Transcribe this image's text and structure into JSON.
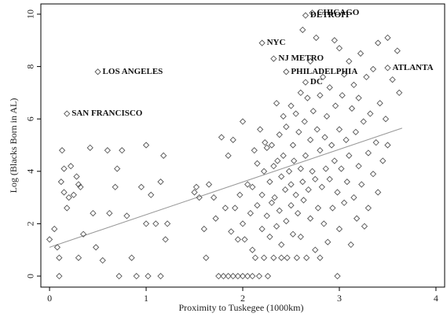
{
  "chart_data": {
    "type": "scatter",
    "x_label": "Proximity to Tuskegee (1000km)",
    "y_label": "Log (Blacks Born in AL)",
    "xlim": [
      -0.09,
      4.09
    ],
    "ylim": [
      -0.42,
      10.39
    ],
    "xticks": [
      0,
      1,
      2,
      3,
      4
    ],
    "yticks": [
      0,
      2,
      4,
      6,
      8,
      10
    ],
    "marker_color": "#555555",
    "fit_color": "#999999",
    "x": [
      0,
      0.05,
      0.08,
      0.1,
      0.1,
      0.12,
      0.13,
      0.15,
      0.15,
      0.18,
      0.2,
      0.22,
      0.25,
      0.28,
      0.3,
      0.32,
      0.35,
      0.3,
      0.42,
      0.45,
      0.48,
      0.55,
      0.6,
      0.62,
      0.68,
      0.7,
      0.72,
      0.75,
      0.8,
      0.85,
      0.9,
      0.95,
      1.0,
      1.0,
      1.02,
      1.05,
      1.1,
      1.15,
      1.18,
      1.2,
      1.22,
      1.15,
      1.5,
      1.52,
      1.55,
      1.6,
      1.62,
      1.65,
      1.7,
      1.72,
      1.75,
      1.78,
      1.8,
      1.82,
      1.85,
      1.85,
      1.88,
      1.9,
      1.9,
      1.92,
      1.95,
      1.95,
      1.97,
      2.0,
      2.0,
      2.02,
      2.0,
      2.05,
      2.05,
      2.08,
      2.1,
      2.1,
      2.1,
      2.12,
      2.13,
      2.15,
      2.15,
      2.17,
      2.18,
      2.2,
      2.2,
      2.22,
      2.22,
      2.23,
      2.25,
      2.25,
      2.26,
      2.28,
      2.28,
      2.3,
      2.3,
      2.32,
      2.32,
      2.33,
      2.35,
      2.35,
      2.36,
      2.38,
      2.38,
      2.4,
      2.4,
      2.4,
      2.42,
      2.42,
      2.44,
      2.45,
      2.45,
      2.46,
      2.48,
      2.5,
      2.5,
      2.5,
      2.52,
      2.52,
      2.53,
      2.55,
      2.55,
      2.56,
      2.57,
      2.58,
      2.6,
      2.6,
      2.6,
      2.62,
      2.62,
      2.63,
      2.64,
      2.65,
      2.66,
      2.67,
      2.68,
      2.7,
      2.7,
      2.7,
      2.72,
      2.73,
      2.75,
      2.75,
      2.76,
      2.77,
      2.78,
      2.8,
      2.8,
      2.8,
      2.82,
      2.83,
      2.84,
      2.85,
      2.86,
      2.87,
      2.88,
      2.9,
      2.9,
      2.92,
      2.93,
      2.95,
      2.95,
      2.96,
      2.98,
      2.98,
      3.0,
      3.0,
      3.0,
      3.02,
      3.03,
      3.05,
      3.05,
      3.07,
      3.08,
      3.1,
      3.1,
      3.12,
      3.13,
      3.15,
      3.15,
      3.17,
      3.18,
      3.2,
      3.2,
      3.22,
      3.23,
      3.25,
      3.26,
      3.28,
      3.3,
      3.3,
      3.32,
      3.35,
      3.35,
      3.38,
      3.4,
      3.4,
      3.42,
      3.45,
      3.48,
      3.5,
      3.5,
      3.55,
      3.6,
      3.62
    ],
    "values": [
      1.4,
      1.8,
      1.1,
      0.7,
      0,
      3.6,
      4.8,
      4.1,
      3.2,
      2.6,
      3.0,
      4.2,
      3.1,
      3.8,
      3.5,
      3.4,
      1.6,
      0.7,
      4.9,
      2.4,
      1.1,
      0.6,
      4.8,
      2.4,
      3.4,
      4.1,
      0,
      4.8,
      2.3,
      0.7,
      0,
      3.4,
      5.0,
      2.0,
      0,
      3.1,
      2.0,
      3.6,
      4.6,
      1.4,
      2.0,
      0,
      3.2,
      3.4,
      3.0,
      1.8,
      0.7,
      3.5,
      3.0,
      2.2,
      0,
      5.3,
      0,
      2.6,
      4.6,
      0,
      1.7,
      0,
      5.2,
      2.6,
      1.4,
      0,
      3.1,
      2.0,
      0,
      1.4,
      5.9,
      3.5,
      0,
      2.4,
      3.4,
      1.0,
      0,
      4.8,
      0.7,
      4.3,
      2.7,
      0,
      5.6,
      3.1,
      1.8,
      0.7,
      4.0,
      5.1,
      2.3,
      4.9,
      0,
      3.6,
      1.5,
      5.0,
      2.8,
      4.2,
      0.7,
      3.0,
      6.6,
      1.9,
      4.4,
      2.5,
      5.4,
      3.8,
      1.2,
      0.7,
      6.1,
      4.6,
      3.3,
      2.1,
      5.7,
      0.7,
      4.0,
      6.5,
      2.7,
      3.5,
      5.0,
      1.6,
      4.4,
      6.2,
      3.1,
      0.7,
      2.4,
      5.5,
      4.1,
      7.0,
      1.5,
      3.6,
      9.4,
      2.9,
      5.9,
      4.6,
      0.7,
      6.8,
      3.3,
      8.2,
      2.2,
      5.2,
      4.0,
      6.3,
      1.0,
      3.7,
      9.1,
      5.6,
      2.6,
      4.8,
      6.9,
      0.7,
      3.4,
      7.6,
      2.0,
      5.3,
      4.1,
      6.1,
      1.3,
      3.7,
      7.2,
      5.0,
      2.6,
      9.0,
      4.4,
      6.5,
      0,
      3.2,
      8.7,
      5.6,
      1.8,
      4.1,
      6.9,
      2.8,
      7.7,
      5.2,
      3.6,
      8.2,
      4.6,
      1.2,
      6.4,
      3.0,
      7.3,
      5.5,
      2.2,
      4.2,
      6.8,
      8.5,
      3.5,
      5.9,
      1.9,
      7.6,
      4.7,
      2.6,
      6.2,
      3.9,
      7.9,
      5.1,
      8.9,
      3.2,
      6.6,
      4.4,
      6.0,
      9.1,
      5.0,
      7.5,
      8.6,
      7.0
    ],
    "fit_line": {
      "x": [
        0,
        3.65
      ],
      "values": [
        1.1,
        5.65
      ]
    },
    "annotations": [
      {
        "text": "LOS ANGELES",
        "x": 0.5,
        "y": 7.8
      },
      {
        "text": "SAN FRANCISCO",
        "x": 0.18,
        "y": 6.2
      },
      {
        "text": "CHICAGO",
        "x": 2.72,
        "y": 10.05
      },
      {
        "text": "DETROIT",
        "x": 2.65,
        "y": 9.95
      },
      {
        "text": "NYC",
        "x": 2.2,
        "y": 8.9
      },
      {
        "text": "NJ METRO",
        "x": 2.32,
        "y": 8.3
      },
      {
        "text": "PHILADELPHIA",
        "x": 2.45,
        "y": 7.8
      },
      {
        "text": "DC",
        "x": 2.65,
        "y": 7.4
      },
      {
        "text": "ATLANTA",
        "x": 3.5,
        "y": 7.95
      }
    ]
  }
}
